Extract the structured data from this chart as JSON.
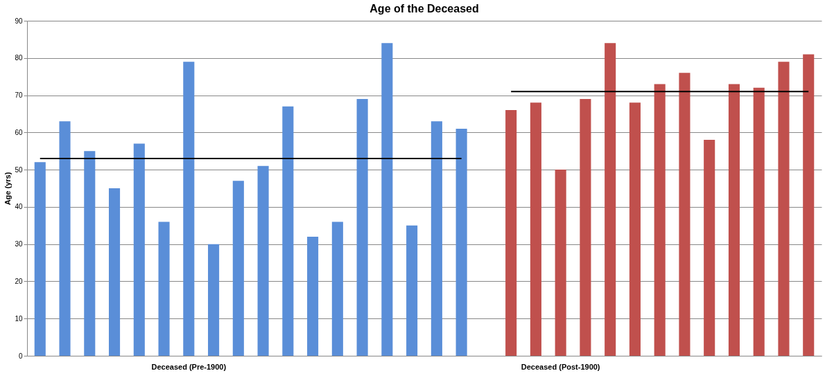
{
  "chart_data": {
    "type": "bar",
    "title": "Age of the Deceased",
    "ylabel": "Age (yrs)",
    "categories": [
      null,
      null,
      null,
      null,
      null,
      null,
      "Deceased (Pre-1900)",
      null,
      null,
      null,
      null,
      null,
      null,
      null,
      null,
      null,
      null,
      null,
      null,
      null,
      null,
      "Deceased  (Post-1900)",
      null,
      null,
      null,
      null,
      null,
      null,
      null,
      null,
      null,
      null
    ],
    "series": [
      {
        "color": "#5a8ed8",
        "values": [
          52,
          63,
          55,
          45,
          57,
          36,
          79,
          30,
          47,
          51,
          67,
          32,
          36,
          69,
          84,
          35,
          63,
          61,
          null,
          null,
          null,
          null,
          null,
          null,
          null,
          null,
          null,
          null,
          null,
          null,
          null,
          null
        ]
      },
      {
        "color": "#c0504d",
        "values": [
          null,
          null,
          null,
          null,
          null,
          null,
          null,
          null,
          null,
          null,
          null,
          null,
          null,
          null,
          null,
          null,
          null,
          null,
          null,
          66,
          68,
          50,
          69,
          84,
          68,
          73,
          76,
          58,
          73,
          72,
          79,
          81
        ]
      },
      {
        "type": "line",
        "color": "#000000",
        "values": [
          53,
          53,
          53,
          53,
          53,
          53,
          53,
          53,
          53,
          53,
          53,
          53,
          53,
          53,
          53,
          53,
          53,
          53,
          null,
          null,
          null,
          null,
          null,
          null,
          null,
          null,
          null,
          null,
          null,
          null,
          null,
          null
        ]
      },
      {
        "type": "line",
        "color": "#000000",
        "values": [
          null,
          null,
          null,
          null,
          null,
          null,
          null,
          null,
          null,
          null,
          null,
          null,
          null,
          null,
          null,
          null,
          null,
          null,
          null,
          71,
          71,
          71,
          71,
          71,
          71,
          71,
          71,
          71,
          71,
          71,
          71,
          71
        ]
      }
    ],
    "ylim": [
      0,
      90
    ],
    "yticks": [
      0,
      10,
      20,
      30,
      40,
      50,
      60,
      70,
      80,
      90
    ],
    "grid": "y"
  }
}
